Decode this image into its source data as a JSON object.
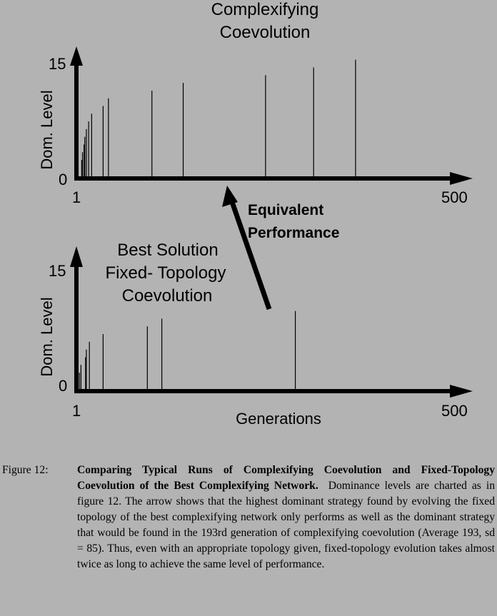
{
  "chart_data": [
    {
      "type": "bar",
      "title": "Complexifying Coevolution",
      "ylabel": "Dom. Level",
      "xlabel": "",
      "xlim": [
        1,
        500
      ],
      "ylim": [
        0,
        15
      ],
      "xticks": [
        "1",
        "500"
      ],
      "yticks": [
        "0",
        "15"
      ],
      "x": [
        8,
        9,
        11,
        12,
        14,
        17,
        21,
        36,
        43,
        100,
        141,
        249,
        312,
        367
      ],
      "values": [
        2,
        3,
        4,
        5,
        6,
        7,
        8,
        9,
        10,
        11,
        12,
        13,
        14,
        15
      ]
    },
    {
      "type": "bar",
      "title": "Best Solution Fixed- Topology Coevolution",
      "title_lines": [
        "Best Solution",
        "Fixed- Topology",
        "Coevolution"
      ],
      "ylabel": "Dom. Level",
      "xlabel": "Generations",
      "xlim": [
        1,
        500
      ],
      "ylim": [
        0,
        15
      ],
      "xticks": [
        "1",
        "500"
      ],
      "yticks": [
        "0",
        "15"
      ],
      "x": [
        5,
        7,
        13,
        14,
        18,
        36,
        94,
        113,
        288
      ],
      "values": [
        2,
        3,
        4,
        5,
        6,
        7,
        8,
        9,
        10
      ]
    }
  ],
  "top_title_lines": [
    "Complexifying",
    "Coevolution"
  ],
  "annotation": {
    "lines": [
      "Equivalent",
      "Performance"
    ],
    "arrow_from_generation": 288,
    "arrow_to_generation": 193
  },
  "caption": {
    "label": "Figure 12:",
    "bold": "Comparing Typical Runs of Complexifying Coevolution and Fixed-Topology Coevolution of the Best Complexifying Network.",
    "text": "Dominance levels are charted as in figure 12. The arrow shows that the highest dominant strategy found by evolving the fixed topology of the best complexifying network only performs as well as the dominant strategy that would be found in the 193rd generation of complexifying coevolution (Average 193, sd = 85). Thus, even with an appropriate topology given, fixed-topology evolution takes almost twice as long to achieve the same level of performance."
  }
}
